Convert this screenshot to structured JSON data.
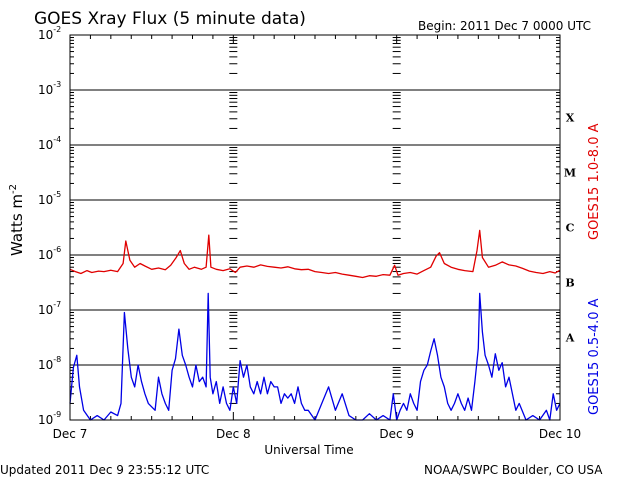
{
  "header": {
    "title": "GOES Xray Flux (5 minute data)",
    "begin": "Begin:  2011 Dec 7 0000 UTC"
  },
  "footer": {
    "updated": "Updated 2011 Dec  9 23:55:12 UTC",
    "credit": "NOAA/SWPC Boulder, CO USA"
  },
  "chart_data": {
    "type": "line",
    "title": "GOES Xray Flux (5 minute data)",
    "xlabel": "Universal Time",
    "ylabel": "Watts m",
    "ylabel_superscript": "-2",
    "yscale": "log",
    "ylim": [
      1e-09,
      0.01
    ],
    "xlim": [
      0,
      72
    ],
    "x_unit": "hours since 2011 Dec 7 0000 UTC",
    "grid": true,
    "x_ticks": [
      {
        "label": "Dec 7",
        "x": 0
      },
      {
        "label": "Dec 8",
        "x": 24
      },
      {
        "label": "Dec 9",
        "x": 48
      },
      {
        "label": "Dec 10",
        "x": 72
      }
    ],
    "y_ticks": [
      {
        "base": "10",
        "exp": "-9",
        "value": 1e-09
      },
      {
        "base": "10",
        "exp": "-8",
        "value": 1e-08
      },
      {
        "base": "10",
        "exp": "-7",
        "value": 1e-07
      },
      {
        "base": "10",
        "exp": "-6",
        "value": 1e-06
      },
      {
        "base": "10",
        "exp": "-5",
        "value": 1e-05
      },
      {
        "base": "10",
        "exp": "-4",
        "value": 0.0001
      },
      {
        "base": "10",
        "exp": "-3",
        "value": 0.001
      },
      {
        "base": "10",
        "exp": "-2",
        "value": 0.01
      }
    ],
    "flare_classes": [
      {
        "label": "X",
        "value": 0.000316
      },
      {
        "label": "M",
        "value": 3.16e-05
      },
      {
        "label": "C",
        "value": 3.16e-06
      },
      {
        "label": "B",
        "value": 3.16e-07
      },
      {
        "label": "A",
        "value": 3.16e-08
      }
    ],
    "series": [
      {
        "name": "GOES15 1.0-8.0 A",
        "color": "#e00000",
        "points": [
          [
            0,
            5.5e-07
          ],
          [
            0.8,
            5e-07
          ],
          [
            1.6,
            4.6e-07
          ],
          [
            2.5,
            5.2e-07
          ],
          [
            3.2,
            4.8e-07
          ],
          [
            4.2,
            5.1e-07
          ],
          [
            5,
            5e-07
          ],
          [
            6,
            5.3e-07
          ],
          [
            7,
            5e-07
          ],
          [
            7.8,
            7e-07
          ],
          [
            8.2,
            1.8e-06
          ],
          [
            8.8,
            8e-07
          ],
          [
            9.5,
            6e-07
          ],
          [
            10.3,
            7e-07
          ],
          [
            11,
            6.3e-07
          ],
          [
            12,
            5.5e-07
          ],
          [
            13,
            5.8e-07
          ],
          [
            14,
            5.4e-07
          ],
          [
            14.8,
            6.5e-07
          ],
          [
            15.6,
            9e-07
          ],
          [
            16.2,
            1.2e-06
          ],
          [
            16.8,
            7e-07
          ],
          [
            17.5,
            5.5e-07
          ],
          [
            18.3,
            6e-07
          ],
          [
            19.3,
            5.5e-07
          ],
          [
            20,
            6e-07
          ],
          [
            20.4,
            2.3e-06
          ],
          [
            20.7,
            6e-07
          ],
          [
            21.5,
            5.5e-07
          ],
          [
            22.5,
            5.2e-07
          ],
          [
            23.5,
            5.6e-07
          ],
          [
            24.3,
            4.8e-07
          ],
          [
            25,
            6e-07
          ],
          [
            26,
            6.3e-07
          ],
          [
            27,
            6e-07
          ],
          [
            28,
            6.6e-07
          ],
          [
            29,
            6.2e-07
          ],
          [
            30,
            6e-07
          ],
          [
            31,
            5.8e-07
          ],
          [
            32,
            6.1e-07
          ],
          [
            33,
            5.6e-07
          ],
          [
            34,
            5.4e-07
          ],
          [
            35,
            5.5e-07
          ],
          [
            36,
            5e-07
          ],
          [
            37,
            4.8e-07
          ],
          [
            38,
            4.6e-07
          ],
          [
            39,
            4.8e-07
          ],
          [
            40,
            4.5e-07
          ],
          [
            41,
            4.3e-07
          ],
          [
            42,
            4.1e-07
          ],
          [
            43,
            3.9e-07
          ],
          [
            44,
            4.2e-07
          ],
          [
            45,
            4.1e-07
          ],
          [
            46,
            4.4e-07
          ],
          [
            47,
            4.3e-07
          ],
          [
            47.7,
            6.5e-07
          ],
          [
            48.2,
            4.3e-07
          ],
          [
            49,
            4.6e-07
          ],
          [
            50,
            4.8e-07
          ],
          [
            51,
            4.5e-07
          ],
          [
            52,
            5.2e-07
          ],
          [
            53,
            6e-07
          ],
          [
            53.8,
            9.5e-07
          ],
          [
            54.3,
            1.1e-06
          ],
          [
            55,
            7e-07
          ],
          [
            56,
            6e-07
          ],
          [
            57,
            5.5e-07
          ],
          [
            58,
            5.2e-07
          ],
          [
            59.2,
            5e-07
          ],
          [
            59.8,
            1.2e-06
          ],
          [
            60.2,
            2.8e-06
          ],
          [
            60.6,
            9e-07
          ],
          [
            61.5,
            6e-07
          ],
          [
            62.5,
            6.5e-07
          ],
          [
            63.5,
            7.5e-07
          ],
          [
            64.5,
            6.6e-07
          ],
          [
            65.5,
            6.3e-07
          ],
          [
            66.5,
            5.7e-07
          ],
          [
            67.5,
            5.1e-07
          ],
          [
            68.5,
            4.8e-07
          ],
          [
            69.5,
            4.6e-07
          ],
          [
            70.5,
            5e-07
          ],
          [
            71.3,
            4.7e-07
          ],
          [
            72,
            5.3e-07
          ]
        ]
      },
      {
        "name": "GOES15 0.5-4.0 A",
        "color": "#0000e6",
        "points": [
          [
            0,
            2e-09
          ],
          [
            0.5,
            9e-09
          ],
          [
            1,
            1.5e-08
          ],
          [
            1.4,
            4e-09
          ],
          [
            2,
            1.5e-09
          ],
          [
            3,
            1e-09
          ],
          [
            4,
            1.2e-09
          ],
          [
            5,
            1e-09
          ],
          [
            6,
            1.4e-09
          ],
          [
            7,
            1.2e-09
          ],
          [
            7.5,
            2e-09
          ],
          [
            8,
            9e-08
          ],
          [
            8.5,
            2e-08
          ],
          [
            9,
            6e-09
          ],
          [
            9.5,
            4e-09
          ],
          [
            10,
            1e-08
          ],
          [
            10.5,
            5e-09
          ],
          [
            11,
            3e-09
          ],
          [
            11.5,
            2e-09
          ],
          [
            12.5,
            1.5e-09
          ],
          [
            13,
            6e-09
          ],
          [
            13.5,
            3e-09
          ],
          [
            14,
            2e-09
          ],
          [
            14.5,
            1.5e-09
          ],
          [
            15,
            8e-09
          ],
          [
            15.5,
            1.3e-08
          ],
          [
            16,
            4.5e-08
          ],
          [
            16.5,
            1.5e-08
          ],
          [
            17,
            1e-08
          ],
          [
            17.5,
            6e-09
          ],
          [
            18,
            4e-09
          ],
          [
            18.5,
            1e-08
          ],
          [
            19,
            5e-09
          ],
          [
            19.5,
            6e-09
          ],
          [
            20,
            4e-09
          ],
          [
            20.3,
            2e-07
          ],
          [
            20.6,
            6e-09
          ],
          [
            21,
            3e-09
          ],
          [
            21.5,
            5e-09
          ],
          [
            22,
            2e-09
          ],
          [
            22.5,
            4e-09
          ],
          [
            23,
            2e-09
          ],
          [
            23.5,
            1.5e-09
          ],
          [
            24,
            4e-09
          ],
          [
            24.5,
            2e-09
          ],
          [
            25,
            1.2e-08
          ],
          [
            25.5,
            6e-09
          ],
          [
            26,
            1e-08
          ],
          [
            26.5,
            4e-09
          ],
          [
            27,
            3e-09
          ],
          [
            27.5,
            5e-09
          ],
          [
            28,
            3e-09
          ],
          [
            28.5,
            6e-09
          ],
          [
            29,
            3e-09
          ],
          [
            29.5,
            5e-09
          ],
          [
            30,
            4e-09
          ],
          [
            30.5,
            4e-09
          ],
          [
            31,
            2e-09
          ],
          [
            31.5,
            3e-09
          ],
          [
            32,
            2.5e-09
          ],
          [
            32.5,
            3e-09
          ],
          [
            33,
            2e-09
          ],
          [
            33.5,
            4e-09
          ],
          [
            34,
            2e-09
          ],
          [
            34.5,
            1.5e-09
          ],
          [
            35,
            1.5e-09
          ],
          [
            36,
            1e-09
          ],
          [
            37,
            2e-09
          ],
          [
            38,
            4e-09
          ],
          [
            39,
            1.5e-09
          ],
          [
            40,
            3e-09
          ],
          [
            41,
            1.2e-09
          ],
          [
            42,
            1e-09
          ],
          [
            43,
            1e-09
          ],
          [
            44,
            1.3e-09
          ],
          [
            45,
            1e-09
          ],
          [
            46,
            1.2e-09
          ],
          [
            47,
            1e-09
          ],
          [
            47.5,
            3e-09
          ],
          [
            48,
            1e-09
          ],
          [
            48.5,
            1.5e-09
          ],
          [
            49,
            2e-09
          ],
          [
            49.5,
            1.5e-09
          ],
          [
            50,
            3e-09
          ],
          [
            50.5,
            2e-09
          ],
          [
            51,
            1.5e-09
          ],
          [
            51.5,
            5e-09
          ],
          [
            52,
            8e-09
          ],
          [
            52.5,
            1e-08
          ],
          [
            53,
            1.8e-08
          ],
          [
            53.5,
            3e-08
          ],
          [
            54,
            1.5e-08
          ],
          [
            54.5,
            6e-09
          ],
          [
            55,
            4e-09
          ],
          [
            55.5,
            2e-09
          ],
          [
            56,
            1.5e-09
          ],
          [
            56.5,
            2e-09
          ],
          [
            57,
            3e-09
          ],
          [
            57.5,
            2e-09
          ],
          [
            58,
            1.5e-09
          ],
          [
            58.5,
            2.5e-09
          ],
          [
            59,
            1.5e-09
          ],
          [
            59.5,
            5e-09
          ],
          [
            60,
            2e-08
          ],
          [
            60.2,
            2e-07
          ],
          [
            60.6,
            4e-08
          ],
          [
            61,
            1.5e-08
          ],
          [
            61.5,
            1e-08
          ],
          [
            62,
            6e-09
          ],
          [
            62.5,
            1.6e-08
          ],
          [
            63,
            8e-09
          ],
          [
            63.5,
            1.1e-08
          ],
          [
            64,
            4e-09
          ],
          [
            64.5,
            6e-09
          ],
          [
            65,
            3e-09
          ],
          [
            65.5,
            1.5e-09
          ],
          [
            66,
            2e-09
          ],
          [
            67,
            1e-09
          ],
          [
            68,
            1.2e-09
          ],
          [
            69,
            1e-09
          ],
          [
            70,
            1.5e-09
          ],
          [
            70.5,
            1e-09
          ],
          [
            71,
            3e-09
          ],
          [
            71.5,
            1.5e-09
          ],
          [
            72,
            2e-09
          ]
        ]
      }
    ]
  }
}
